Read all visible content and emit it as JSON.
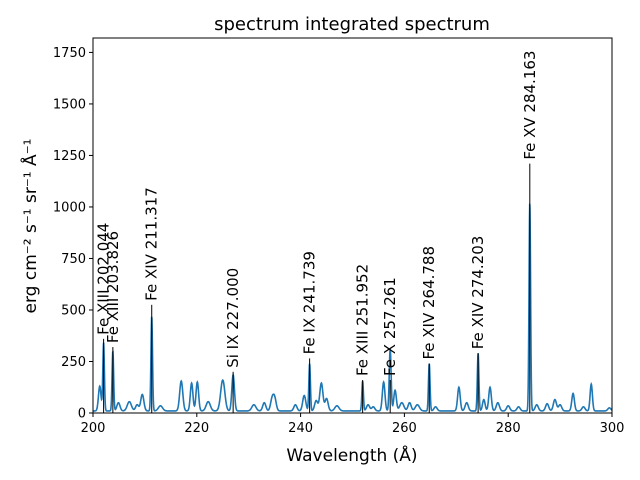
{
  "chart_data": {
    "type": "line",
    "title": "spectrum integrated spectrum",
    "xlabel": "Wavelength (Å)",
    "ylabel": "erg cm⁻² s⁻¹ sr⁻¹ Å⁻¹",
    "xlim": [
      200,
      300
    ],
    "ylim": [
      0,
      1820
    ],
    "xticks": [
      200,
      220,
      240,
      260,
      280,
      300
    ],
    "yticks": [
      0,
      250,
      500,
      750,
      1000,
      1250,
      1500,
      1750
    ],
    "grid": false,
    "series_color": "#1f77b4",
    "marker_color": "#000000",
    "baseline": 10,
    "peaks": [
      [
        201.3,
        120,
        0.25
      ],
      [
        202.044,
        330,
        0.15
      ],
      [
        203.826,
        290,
        0.15
      ],
      [
        204.9,
        40,
        0.3
      ],
      [
        207.0,
        45,
        0.4
      ],
      [
        208.5,
        30,
        0.3
      ],
      [
        209.5,
        80,
        0.3
      ],
      [
        211.317,
        460,
        0.15
      ],
      [
        213.0,
        25,
        0.4
      ],
      [
        217.0,
        145,
        0.3
      ],
      [
        219.0,
        135,
        0.25
      ],
      [
        220.1,
        140,
        0.25
      ],
      [
        222.2,
        45,
        0.4
      ],
      [
        225.0,
        150,
        0.4
      ],
      [
        227.0,
        175,
        0.25
      ],
      [
        231.0,
        30,
        0.4
      ],
      [
        233.0,
        40,
        0.3
      ],
      [
        234.5,
        55,
        0.3
      ],
      [
        235.0,
        60,
        0.3
      ],
      [
        239.0,
        30,
        0.3
      ],
      [
        240.7,
        75,
        0.3
      ],
      [
        241.739,
        230,
        0.15
      ],
      [
        243.0,
        50,
        0.3
      ],
      [
        244.0,
        135,
        0.3
      ],
      [
        245.0,
        60,
        0.3
      ],
      [
        247.0,
        25,
        0.4
      ],
      [
        251.952,
        145,
        0.15
      ],
      [
        253.0,
        30,
        0.3
      ],
      [
        254.0,
        20,
        0.3
      ],
      [
        256.0,
        140,
        0.25
      ],
      [
        257.261,
        300,
        0.18
      ],
      [
        258.2,
        100,
        0.25
      ],
      [
        259.5,
        40,
        0.4
      ],
      [
        261.0,
        40,
        0.3
      ],
      [
        262.5,
        30,
        0.4
      ],
      [
        264.788,
        230,
        0.15
      ],
      [
        266.0,
        20,
        0.3
      ],
      [
        270.5,
        115,
        0.25
      ],
      [
        272.0,
        40,
        0.3
      ],
      [
        274.203,
        280,
        0.15
      ],
      [
        275.3,
        55,
        0.25
      ],
      [
        276.5,
        115,
        0.25
      ],
      [
        278.0,
        40,
        0.3
      ],
      [
        280.0,
        25,
        0.3
      ],
      [
        282.0,
        20,
        0.3
      ],
      [
        284.163,
        1010,
        0.15
      ],
      [
        285.5,
        30,
        0.3
      ],
      [
        287.5,
        35,
        0.3
      ],
      [
        289.0,
        55,
        0.3
      ],
      [
        290.0,
        30,
        0.3
      ],
      [
        292.5,
        85,
        0.25
      ],
      [
        294.5,
        20,
        0.3
      ],
      [
        296.0,
        130,
        0.22
      ],
      [
        299.5,
        15,
        0.3
      ]
    ],
    "annotations": [
      {
        "ion": "Fe XIII",
        "wavelength": "202.044",
        "x": 202.044,
        "peak": 330,
        "top": 360
      },
      {
        "ion": "Fe XIII",
        "wavelength": "203.826",
        "x": 203.826,
        "peak": 290,
        "top": 320
      },
      {
        "ion": "Fe XIV",
        "wavelength": "211.317",
        "x": 211.317,
        "peak": 460,
        "top": 525
      },
      {
        "ion": "Si IX",
        "wavelength": "227.000",
        "x": 227.0,
        "peak": 175,
        "top": 200
      },
      {
        "ion": "Fe IX",
        "wavelength": "241.739",
        "x": 241.739,
        "peak": 230,
        "top": 265
      },
      {
        "ion": "Fe XIII",
        "wavelength": "251.952",
        "x": 251.952,
        "peak": 145,
        "top": 160
      },
      {
        "ion": "Fe X",
        "wavelength": "257.261",
        "x": 257.261,
        "peak": 300,
        "top": 160
      },
      {
        "ion": "Fe XIV",
        "wavelength": "264.788",
        "x": 264.788,
        "peak": 230,
        "top": 240
      },
      {
        "ion": "Fe XIV",
        "wavelength": "274.203",
        "x": 274.203,
        "peak": 280,
        "top": 290
      },
      {
        "ion": "Fe XV",
        "wavelength": "284.163",
        "x": 284.163,
        "peak": 1010,
        "top": 1210
      }
    ]
  }
}
